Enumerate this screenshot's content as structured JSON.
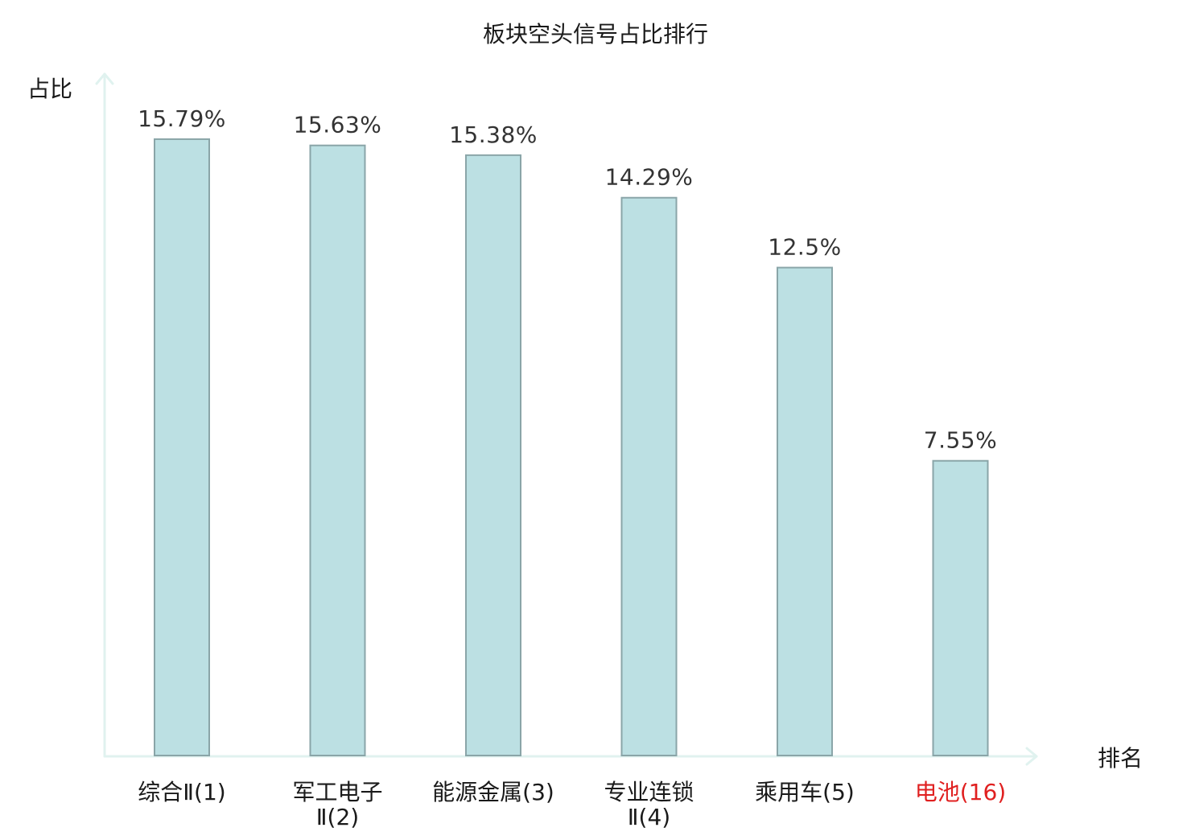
{
  "chart_data": {
    "type": "bar",
    "title": "板块空头信号占比排行",
    "ylabel": "占比",
    "xlabel": "排名",
    "categories": [
      [
        "综合Ⅱ(1)"
      ],
      [
        "军工电子",
        "Ⅱ(2)"
      ],
      [
        "能源金属(3)"
      ],
      [
        "专业连锁",
        "Ⅱ(4)"
      ],
      [
        "乘用车(5)"
      ],
      [
        "电池(16)"
      ]
    ],
    "values": [
      15.79,
      15.63,
      15.38,
      14.29,
      12.5,
      7.55
    ],
    "value_labels": [
      "15.79%",
      "15.63%",
      "15.38%",
      "14.29%",
      "12.5%",
      "7.55%"
    ],
    "highlight_index": 5,
    "ylim": [
      0,
      17.5
    ],
    "grid": false,
    "legend": "none"
  },
  "colors": {
    "bar_fill": "#bce0e3",
    "bar_stroke": "#8aa5a8",
    "axis": "#e0f2ef",
    "text": "#1a1a1a",
    "value_text": "#333333",
    "highlight": "#e02020"
  }
}
